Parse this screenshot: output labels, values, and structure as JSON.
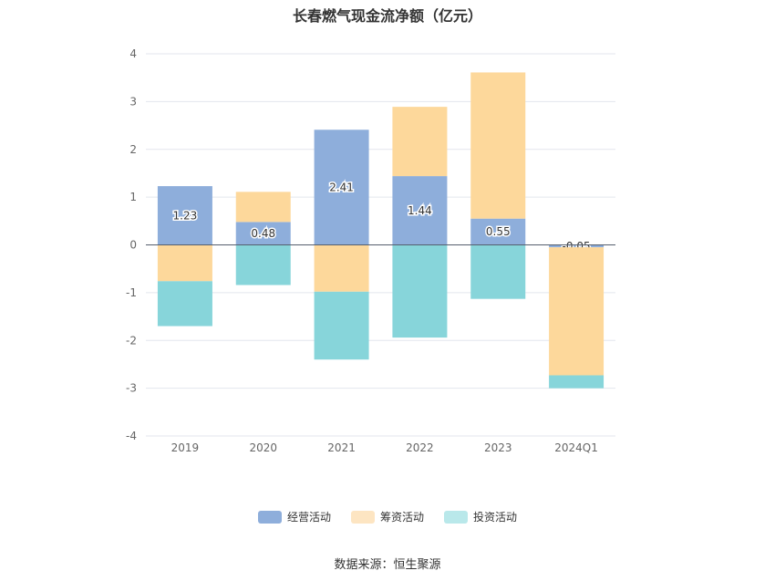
{
  "title": "长春燃气现金流净额（亿元）",
  "source": "数据来源：恒生聚源",
  "chart_data": {
    "type": "bar",
    "stacked": true,
    "categories": [
      "2019",
      "2020",
      "2021",
      "2022",
      "2023",
      "2024Q1"
    ],
    "ylim": [
      -4,
      4
    ],
    "yticks": [
      4,
      3,
      2,
      1,
      0,
      -1,
      -2,
      -3,
      -4
    ],
    "grid": true,
    "legend_position": "bottom",
    "series": [
      {
        "name": "经营活动",
        "color": "#8eaedb",
        "values": [
          1.23,
          0.48,
          2.41,
          1.44,
          0.55,
          -0.05
        ],
        "labels": [
          "1.23",
          "0.48",
          "2.41",
          "1.44",
          "0.55",
          "-0.05"
        ]
      },
      {
        "name": "筹资活动",
        "color": "#fdd89b",
        "values": [
          -0.76,
          0.63,
          -0.98,
          1.45,
          3.06,
          -2.68
        ],
        "labels": [
          "",
          "",
          "",
          "",
          "",
          ""
        ]
      },
      {
        "name": "投资活动",
        "color": "#87d5da",
        "values": [
          -0.94,
          -0.84,
          -1.42,
          -1.94,
          -1.13,
          -0.27
        ],
        "labels": [
          "",
          "",
          "",
          "",
          "",
          ""
        ]
      }
    ]
  },
  "legend": {
    "items": [
      {
        "label": "经营活动",
        "color": "#8eaedb"
      },
      {
        "label": "筹资活动",
        "color": "#fde5c2"
      },
      {
        "label": "投资活动",
        "color": "#b9e8ea"
      }
    ]
  }
}
